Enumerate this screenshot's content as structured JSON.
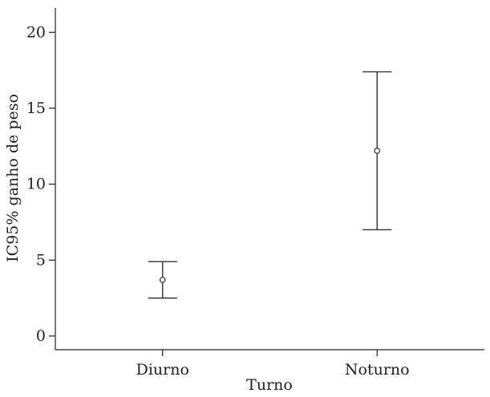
{
  "chart_data": {
    "type": "errorbar",
    "categories": [
      "Diurno",
      "Noturno"
    ],
    "series": [
      {
        "means": [
          3.7,
          12.2
        ],
        "lower": [
          2.5,
          7.0
        ],
        "upper": [
          4.9,
          17.4
        ]
      }
    ],
    "xlabel": "Turno",
    "ylabel": "IC95% ganho de peso",
    "ylim": [
      -0.9,
      21.6
    ],
    "yticks": [
      0,
      5,
      10,
      15,
      20
    ],
    "grid": false,
    "legend": "none"
  }
}
